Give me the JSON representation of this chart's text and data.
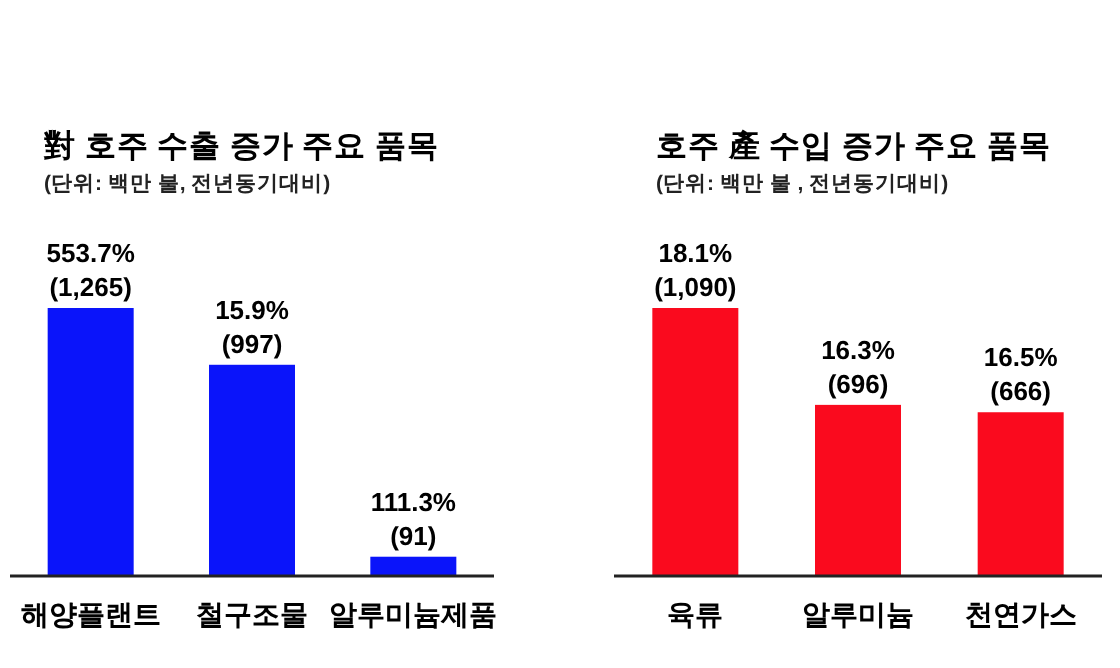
{
  "chart_data": [
    {
      "type": "bar",
      "title": "對 호주 수출 증가 주요 품목",
      "subtitle": "(단위: 백만 불, 전년동기대비)",
      "categories": [
        "해양플랜트",
        "철구조물",
        "알루미늄제품"
      ],
      "values": [
        1265,
        997,
        91
      ],
      "color": "#0a14fa",
      "value_labels": [
        "553.7%\n(1,265)",
        "15.9%\n(997)",
        "111.3%\n(91)"
      ]
    },
    {
      "type": "bar",
      "title": "호주 產 수입 증가 주요 품목",
      "subtitle": "(단위: 백만 불 , 전년동기대비)",
      "categories": [
        "육류",
        "알루미늄",
        "천연가스"
      ],
      "values": [
        1090,
        696,
        666
      ],
      "color": "#fa0a1e",
      "value_labels": [
        "18.1%\n(1,090)",
        "16.3%\n(696)",
        "16.5%\n(666)"
      ]
    }
  ]
}
